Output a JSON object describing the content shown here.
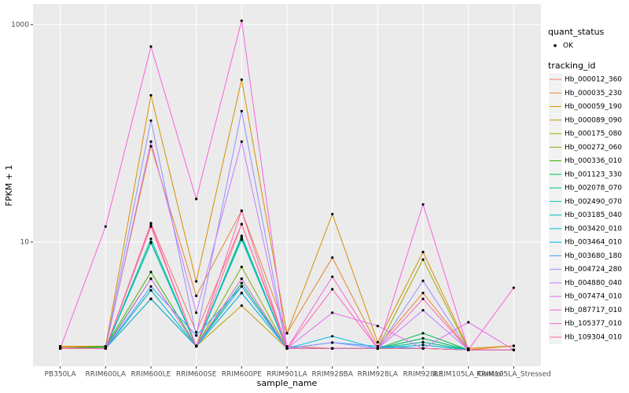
{
  "chart_data": {
    "type": "line",
    "x_label": "sample_name",
    "y_label": "FPKM + 1",
    "log_y": true,
    "grid": true,
    "ylim": [
      0.72,
      1550
    ],
    "yticks": [
      10,
      1000
    ],
    "point_legend_title": "quant_status",
    "point_legend_label": "OK",
    "point_color": "#000000",
    "legend_title": "tracking_id",
    "categories": [
      "PB350LA",
      "RRIM600LA",
      "RRIM600LE",
      "RRIM600SE",
      "RRIM600PE",
      "RRIM901LA",
      "RRIM928BA",
      "RRIM928LA",
      "RRIM928LE",
      "RRIM105LA_Control",
      "RRIM105LA_Stressed"
    ],
    "series": [
      {
        "name": "Hb_000012_360",
        "color": "#F8766D",
        "values": [
          1.05,
          1.05,
          14.9,
          1.48,
          14.6,
          1.1,
          1.05,
          1.05,
          1.05,
          1.02,
          1.02
        ]
      },
      {
        "name": "Hb_000035_230",
        "color": "#EA8331",
        "values": [
          1.1,
          1.08,
          76,
          3.2,
          19.4,
          1.45,
          7.2,
          1.1,
          3.4,
          1.02,
          1.11
        ]
      },
      {
        "name": "Hb_000059_190",
        "color": "#D89000",
        "values": [
          1.1,
          1.1,
          224,
          4.35,
          312,
          1.45,
          18.1,
          1.2,
          8.1,
          1.05,
          1.11
        ]
      },
      {
        "name": "Hb_000089_090",
        "color": "#C09B00",
        "values": [
          1.08,
          1.05,
          3.0,
          1.1,
          2.6,
          1.05,
          1.05,
          1.05,
          1.05,
          1.02,
          1.02
        ]
      },
      {
        "name": "Hb_000175_080",
        "color": "#A3A500",
        "values": [
          1.05,
          1.05,
          3.6,
          1.1,
          3.4,
          1.05,
          1.05,
          1.05,
          6.9,
          1.02,
          1.02
        ]
      },
      {
        "name": "Hb_000272_060",
        "color": "#7CAE00",
        "values": [
          1.05,
          1.05,
          3.0,
          1.1,
          5.9,
          1.05,
          1.05,
          1.05,
          1.2,
          1.02,
          1.02
        ]
      },
      {
        "name": "Hb_000336_010",
        "color": "#39B600",
        "values": [
          1.05,
          1.1,
          5.3,
          1.11,
          4.6,
          1.05,
          1.05,
          1.05,
          1.3,
          1.02,
          1.02
        ]
      },
      {
        "name": "Hb_001123_330",
        "color": "#00BB4E",
        "values": [
          1.05,
          1.08,
          4.6,
          1.11,
          4.2,
          1.05,
          1.05,
          1.05,
          1.45,
          1.02,
          1.02
        ]
      },
      {
        "name": "Hb_002078_070",
        "color": "#00BF7D",
        "values": [
          1.05,
          1.05,
          10,
          1.1,
          11,
          1.05,
          1.05,
          1.05,
          1.3,
          1.02,
          1.02
        ]
      },
      {
        "name": "Hb_002490_070",
        "color": "#00C1A3",
        "values": [
          1.05,
          1.05,
          10.7,
          1.1,
          11.4,
          1.05,
          1.05,
          1.05,
          1.2,
          1.02,
          1.02
        ]
      },
      {
        "name": "Hb_003185_040",
        "color": "#00BFC4",
        "values": [
          1.05,
          1.05,
          9.8,
          1.1,
          10.5,
          1.05,
          1.05,
          1.05,
          1.13,
          1.02,
          1.02
        ]
      },
      {
        "name": "Hb_003420_010",
        "color": "#00BAE0",
        "values": [
          1.05,
          1.05,
          3.6,
          1.1,
          3.9,
          1.05,
          1.36,
          1.05,
          1.13,
          1.02,
          1.02
        ]
      },
      {
        "name": "Hb_003464_010",
        "color": "#00B0F6",
        "values": [
          1.05,
          1.05,
          3.0,
          1.1,
          3.4,
          1.05,
          1.05,
          1.05,
          1.05,
          1.02,
          1.02
        ]
      },
      {
        "name": "Hb_003680_180",
        "color": "#35A2FF",
        "values": [
          1.05,
          1.05,
          3.9,
          1.38,
          3.9,
          1.05,
          1.19,
          1.1,
          1.05,
          1.02,
          1.02
        ]
      },
      {
        "name": "Hb_004724_280",
        "color": "#9590FF",
        "values": [
          1.05,
          1.05,
          131,
          1.38,
          160,
          1.05,
          1.19,
          1.05,
          4.4,
          1.02,
          1.02
        ]
      },
      {
        "name": "Hb_004880_040",
        "color": "#C77CFF",
        "values": [
          1.05,
          1.05,
          84,
          2.24,
          84,
          1.05,
          1.05,
          1.05,
          2.36,
          1.02,
          1.02
        ]
      },
      {
        "name": "Hb_007474_010",
        "color": "#E76BF3",
        "values": [
          1.05,
          1.05,
          4.6,
          1.1,
          4.6,
          1.05,
          2.24,
          1.69,
          1.05,
          1.83,
          1.02
        ]
      },
      {
        "name": "Hb_087717_010",
        "color": "#FA62DB",
        "values": [
          1.05,
          13.9,
          628,
          24.9,
          1087,
          1.05,
          4.8,
          1.05,
          22.2,
          1.02,
          3.8
        ]
      },
      {
        "name": "Hb_105377_010",
        "color": "#FF62BC",
        "values": [
          1.05,
          1.05,
          14.6,
          1.1,
          19.4,
          1.05,
          3.68,
          1.05,
          3.0,
          1.02,
          1.02
        ]
      },
      {
        "name": "Hb_109304_010",
        "color": "#FF6A98",
        "values": [
          1.05,
          1.05,
          13.9,
          1.1,
          14.6,
          1.05,
          1.05,
          1.05,
          1.05,
          1.02,
          1.02
        ]
      }
    ]
  }
}
